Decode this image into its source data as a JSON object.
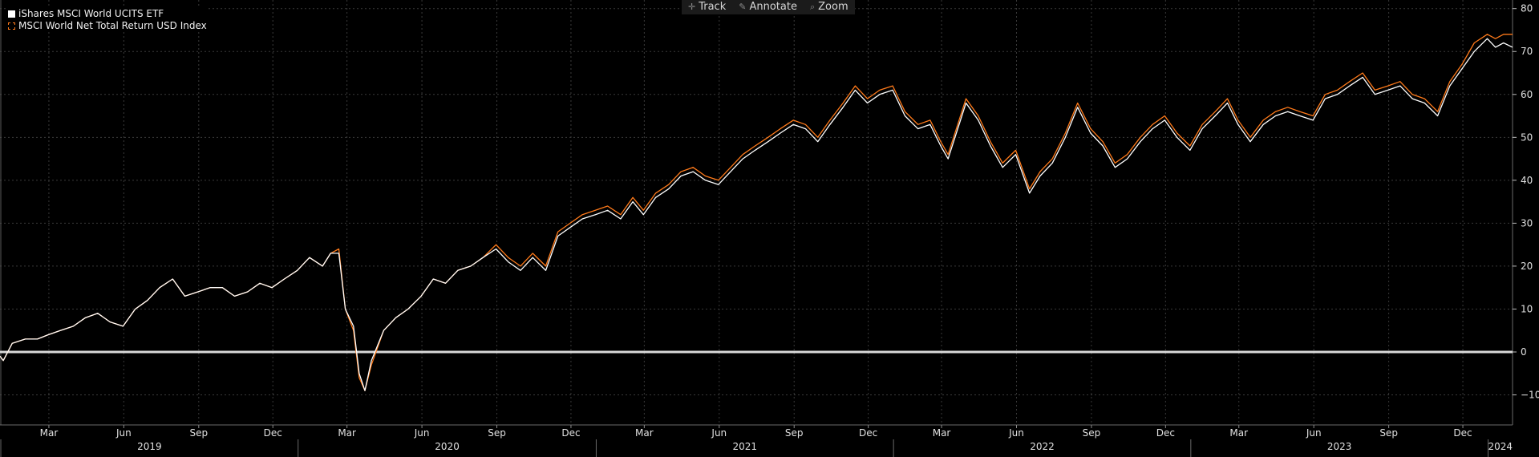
{
  "toolbar": {
    "track_label": "Track",
    "annotate_label": "Annotate",
    "zoom_label": "Zoom"
  },
  "legend": {
    "etf_label": "iShares MSCI World UCITS ETF",
    "index_label": "MSCI World Net Total Return USD Index"
  },
  "colors": {
    "background": "#000000",
    "etf_line": "#ffffff",
    "index_line": "#ff7a1a",
    "grid": "#3a3a3a",
    "zero_line": "#d9d9d9"
  },
  "chart_data": {
    "type": "line",
    "title": "",
    "xlabel": "",
    "ylabel": "",
    "x_range": [
      "2018-12-31",
      "2024-01-31"
    ],
    "ylim": [
      -17,
      82
    ],
    "yticks": [
      -10,
      0,
      10,
      20,
      30,
      40,
      50,
      60,
      70,
      80
    ],
    "grid": true,
    "legend_position": "top-left",
    "month_ticks": [
      {
        "date": "2019-03-01",
        "label": "Mar"
      },
      {
        "date": "2019-06-01",
        "label": "Jun"
      },
      {
        "date": "2019-09-01",
        "label": "Sep"
      },
      {
        "date": "2019-12-01",
        "label": "Dec"
      },
      {
        "date": "2020-03-01",
        "label": "Mar"
      },
      {
        "date": "2020-06-01",
        "label": "Jun"
      },
      {
        "date": "2020-09-01",
        "label": "Sep"
      },
      {
        "date": "2020-12-01",
        "label": "Dec"
      },
      {
        "date": "2021-03-01",
        "label": "Mar"
      },
      {
        "date": "2021-06-01",
        "label": "Jun"
      },
      {
        "date": "2021-09-01",
        "label": "Sep"
      },
      {
        "date": "2021-12-01",
        "label": "Dec"
      },
      {
        "date": "2022-03-01",
        "label": "Mar"
      },
      {
        "date": "2022-06-01",
        "label": "Jun"
      },
      {
        "date": "2022-09-01",
        "label": "Sep"
      },
      {
        "date": "2022-12-01",
        "label": "Dec"
      },
      {
        "date": "2023-03-01",
        "label": "Mar"
      },
      {
        "date": "2023-06-01",
        "label": "Jun"
      },
      {
        "date": "2023-09-01",
        "label": "Sep"
      },
      {
        "date": "2023-12-01",
        "label": "Dec"
      }
    ],
    "year_ticks": [
      {
        "year": "2019",
        "start": "2019-01-01",
        "end": "2020-01-01"
      },
      {
        "year": "2020",
        "start": "2020-01-01",
        "end": "2021-01-01"
      },
      {
        "year": "2021",
        "start": "2021-01-01",
        "end": "2022-01-01"
      },
      {
        "year": "2022",
        "start": "2022-01-01",
        "end": "2023-01-01"
      },
      {
        "year": "2023",
        "start": "2023-01-01",
        "end": "2024-01-01"
      },
      {
        "year": "2024",
        "start": "2024-01-01",
        "end": "2024-01-31"
      }
    ],
    "series": [
      {
        "name": "iShares MSCI World UCITS ETF",
        "color": "#ffffff",
        "points": [
          [
            "2018-12-31",
            -1
          ],
          [
            "2019-01-04",
            -2
          ],
          [
            "2019-01-15",
            2
          ],
          [
            "2019-01-31",
            3
          ],
          [
            "2019-02-15",
            3
          ],
          [
            "2019-02-28",
            4
          ],
          [
            "2019-03-15",
            5
          ],
          [
            "2019-03-31",
            6
          ],
          [
            "2019-04-15",
            8
          ],
          [
            "2019-04-30",
            9
          ],
          [
            "2019-05-15",
            7
          ],
          [
            "2019-05-31",
            6
          ],
          [
            "2019-06-15",
            10
          ],
          [
            "2019-06-30",
            12
          ],
          [
            "2019-07-15",
            15
          ],
          [
            "2019-07-31",
            17
          ],
          [
            "2019-08-15",
            13
          ],
          [
            "2019-08-31",
            14
          ],
          [
            "2019-09-15",
            15
          ],
          [
            "2019-09-30",
            15
          ],
          [
            "2019-10-15",
            13
          ],
          [
            "2019-10-31",
            14
          ],
          [
            "2019-11-15",
            16
          ],
          [
            "2019-11-30",
            15
          ],
          [
            "2019-12-15",
            17
          ],
          [
            "2019-12-31",
            19
          ],
          [
            "2020-01-15",
            22
          ],
          [
            "2020-01-31",
            20
          ],
          [
            "2020-02-10",
            23
          ],
          [
            "2020-02-20",
            23
          ],
          [
            "2020-02-28",
            10
          ],
          [
            "2020-03-09",
            6
          ],
          [
            "2020-03-16",
            -5
          ],
          [
            "2020-03-23",
            -9
          ],
          [
            "2020-03-31",
            -2
          ],
          [
            "2020-04-15",
            5
          ],
          [
            "2020-04-30",
            8
          ],
          [
            "2020-05-15",
            10
          ],
          [
            "2020-05-31",
            13
          ],
          [
            "2020-06-15",
            17
          ],
          [
            "2020-06-30",
            16
          ],
          [
            "2020-07-15",
            19
          ],
          [
            "2020-07-31",
            20
          ],
          [
            "2020-08-15",
            22
          ],
          [
            "2020-08-31",
            24
          ],
          [
            "2020-09-15",
            21
          ],
          [
            "2020-09-30",
            19
          ],
          [
            "2020-10-15",
            22
          ],
          [
            "2020-10-31",
            19
          ],
          [
            "2020-11-15",
            27
          ],
          [
            "2020-11-30",
            29
          ],
          [
            "2020-12-15",
            31
          ],
          [
            "2020-12-31",
            32
          ],
          [
            "2021-01-15",
            33
          ],
          [
            "2021-01-31",
            31
          ],
          [
            "2021-02-15",
            35
          ],
          [
            "2021-02-28",
            32
          ],
          [
            "2021-03-15",
            36
          ],
          [
            "2021-03-31",
            38
          ],
          [
            "2021-04-15",
            41
          ],
          [
            "2021-04-30",
            42
          ],
          [
            "2021-05-15",
            40
          ],
          [
            "2021-05-31",
            39
          ],
          [
            "2021-06-15",
            42
          ],
          [
            "2021-06-30",
            45
          ],
          [
            "2021-07-15",
            47
          ],
          [
            "2021-07-31",
            49
          ],
          [
            "2021-08-15",
            51
          ],
          [
            "2021-08-31",
            53
          ],
          [
            "2021-09-15",
            52
          ],
          [
            "2021-09-30",
            49
          ],
          [
            "2021-10-15",
            53
          ],
          [
            "2021-10-31",
            57
          ],
          [
            "2021-11-15",
            61
          ],
          [
            "2021-11-30",
            58
          ],
          [
            "2021-12-15",
            60
          ],
          [
            "2021-12-31",
            61
          ],
          [
            "2022-01-15",
            55
          ],
          [
            "2022-01-31",
            52
          ],
          [
            "2022-02-15",
            53
          ],
          [
            "2022-02-28",
            48
          ],
          [
            "2022-03-09",
            45
          ],
          [
            "2022-03-31",
            58
          ],
          [
            "2022-04-15",
            54
          ],
          [
            "2022-04-30",
            48
          ],
          [
            "2022-05-15",
            43
          ],
          [
            "2022-05-31",
            46
          ],
          [
            "2022-06-17",
            37
          ],
          [
            "2022-06-30",
            41
          ],
          [
            "2022-07-15",
            44
          ],
          [
            "2022-07-31",
            50
          ],
          [
            "2022-08-15",
            57
          ],
          [
            "2022-08-31",
            51
          ],
          [
            "2022-09-15",
            48
          ],
          [
            "2022-09-30",
            43
          ],
          [
            "2022-10-15",
            45
          ],
          [
            "2022-10-31",
            49
          ],
          [
            "2022-11-15",
            52
          ],
          [
            "2022-11-30",
            54
          ],
          [
            "2022-12-15",
            50
          ],
          [
            "2022-12-31",
            47
          ],
          [
            "2023-01-15",
            52
          ],
          [
            "2023-01-31",
            55
          ],
          [
            "2023-02-15",
            58
          ],
          [
            "2023-02-28",
            53
          ],
          [
            "2023-03-15",
            49
          ],
          [
            "2023-03-31",
            53
          ],
          [
            "2023-04-15",
            55
          ],
          [
            "2023-04-30",
            56
          ],
          [
            "2023-05-15",
            55
          ],
          [
            "2023-05-31",
            54
          ],
          [
            "2023-06-15",
            59
          ],
          [
            "2023-06-30",
            60
          ],
          [
            "2023-07-15",
            62
          ],
          [
            "2023-07-31",
            64
          ],
          [
            "2023-08-15",
            60
          ],
          [
            "2023-08-31",
            61
          ],
          [
            "2023-09-15",
            62
          ],
          [
            "2023-09-30",
            59
          ],
          [
            "2023-10-15",
            58
          ],
          [
            "2023-10-31",
            55
          ],
          [
            "2023-11-15",
            62
          ],
          [
            "2023-11-30",
            66
          ],
          [
            "2023-12-15",
            70
          ],
          [
            "2023-12-31",
            73
          ],
          [
            "2024-01-10",
            71
          ],
          [
            "2024-01-20",
            72
          ],
          [
            "2024-01-31",
            71
          ]
        ]
      },
      {
        "name": "MSCI World Net Total Return USD Index",
        "color": "#ff7a1a",
        "points": [
          [
            "2018-12-31",
            -1
          ],
          [
            "2019-01-04",
            -2
          ],
          [
            "2019-01-15",
            2
          ],
          [
            "2019-01-31",
            3
          ],
          [
            "2019-02-15",
            3
          ],
          [
            "2019-02-28",
            4
          ],
          [
            "2019-03-15",
            5
          ],
          [
            "2019-03-31",
            6
          ],
          [
            "2019-04-15",
            8
          ],
          [
            "2019-04-30",
            9
          ],
          [
            "2019-05-15",
            7
          ],
          [
            "2019-05-31",
            6
          ],
          [
            "2019-06-15",
            10
          ],
          [
            "2019-06-30",
            12
          ],
          [
            "2019-07-15",
            15
          ],
          [
            "2019-07-31",
            17
          ],
          [
            "2019-08-15",
            13
          ],
          [
            "2019-08-31",
            14
          ],
          [
            "2019-09-15",
            15
          ],
          [
            "2019-09-30",
            15
          ],
          [
            "2019-10-15",
            13
          ],
          [
            "2019-10-31",
            14
          ],
          [
            "2019-11-15",
            16
          ],
          [
            "2019-11-30",
            15
          ],
          [
            "2019-12-15",
            17
          ],
          [
            "2019-12-31",
            19
          ],
          [
            "2020-01-15",
            22
          ],
          [
            "2020-01-31",
            20
          ],
          [
            "2020-02-10",
            23
          ],
          [
            "2020-02-20",
            24
          ],
          [
            "2020-02-28",
            10
          ],
          [
            "2020-03-09",
            5
          ],
          [
            "2020-03-16",
            -6
          ],
          [
            "2020-03-23",
            -9
          ],
          [
            "2020-03-31",
            -3
          ],
          [
            "2020-04-15",
            5
          ],
          [
            "2020-04-30",
            8
          ],
          [
            "2020-05-15",
            10
          ],
          [
            "2020-05-31",
            13
          ],
          [
            "2020-06-15",
            17
          ],
          [
            "2020-06-30",
            16
          ],
          [
            "2020-07-15",
            19
          ],
          [
            "2020-07-31",
            20
          ],
          [
            "2020-08-15",
            22
          ],
          [
            "2020-08-31",
            25
          ],
          [
            "2020-09-15",
            22
          ],
          [
            "2020-09-30",
            20
          ],
          [
            "2020-10-15",
            23
          ],
          [
            "2020-10-31",
            20
          ],
          [
            "2020-11-15",
            28
          ],
          [
            "2020-11-30",
            30
          ],
          [
            "2020-12-15",
            32
          ],
          [
            "2020-12-31",
            33
          ],
          [
            "2021-01-15",
            34
          ],
          [
            "2021-01-31",
            32
          ],
          [
            "2021-02-15",
            36
          ],
          [
            "2021-02-28",
            33
          ],
          [
            "2021-03-15",
            37
          ],
          [
            "2021-03-31",
            39
          ],
          [
            "2021-04-15",
            42
          ],
          [
            "2021-04-30",
            43
          ],
          [
            "2021-05-15",
            41
          ],
          [
            "2021-05-31",
            40
          ],
          [
            "2021-06-15",
            43
          ],
          [
            "2021-06-30",
            46
          ],
          [
            "2021-07-15",
            48
          ],
          [
            "2021-07-31",
            50
          ],
          [
            "2021-08-15",
            52
          ],
          [
            "2021-08-31",
            54
          ],
          [
            "2021-09-15",
            53
          ],
          [
            "2021-09-30",
            50
          ],
          [
            "2021-10-15",
            54
          ],
          [
            "2021-10-31",
            58
          ],
          [
            "2021-11-15",
            62
          ],
          [
            "2021-11-30",
            59
          ],
          [
            "2021-12-15",
            61
          ],
          [
            "2021-12-31",
            62
          ],
          [
            "2022-01-15",
            56
          ],
          [
            "2022-01-31",
            53
          ],
          [
            "2022-02-15",
            54
          ],
          [
            "2022-02-28",
            49
          ],
          [
            "2022-03-09",
            46
          ],
          [
            "2022-03-31",
            59
          ],
          [
            "2022-04-15",
            55
          ],
          [
            "2022-04-30",
            49
          ],
          [
            "2022-05-15",
            44
          ],
          [
            "2022-05-31",
            47
          ],
          [
            "2022-06-17",
            38
          ],
          [
            "2022-06-30",
            42
          ],
          [
            "2022-07-15",
            45
          ],
          [
            "2022-07-31",
            51
          ],
          [
            "2022-08-15",
            58
          ],
          [
            "2022-08-31",
            52
          ],
          [
            "2022-09-15",
            49
          ],
          [
            "2022-09-30",
            44
          ],
          [
            "2022-10-15",
            46
          ],
          [
            "2022-10-31",
            50
          ],
          [
            "2022-11-15",
            53
          ],
          [
            "2022-11-30",
            55
          ],
          [
            "2022-12-15",
            51
          ],
          [
            "2022-12-31",
            48
          ],
          [
            "2023-01-15",
            53
          ],
          [
            "2023-01-31",
            56
          ],
          [
            "2023-02-15",
            59
          ],
          [
            "2023-02-28",
            54
          ],
          [
            "2023-03-15",
            50
          ],
          [
            "2023-03-31",
            54
          ],
          [
            "2023-04-15",
            56
          ],
          [
            "2023-04-30",
            57
          ],
          [
            "2023-05-15",
            56
          ],
          [
            "2023-05-31",
            55
          ],
          [
            "2023-06-15",
            60
          ],
          [
            "2023-06-30",
            61
          ],
          [
            "2023-07-15",
            63
          ],
          [
            "2023-07-31",
            65
          ],
          [
            "2023-08-15",
            61
          ],
          [
            "2023-08-31",
            62
          ],
          [
            "2023-09-15",
            63
          ],
          [
            "2023-09-30",
            60
          ],
          [
            "2023-10-15",
            59
          ],
          [
            "2023-10-31",
            56
          ],
          [
            "2023-11-15",
            63
          ],
          [
            "2023-11-30",
            67
          ],
          [
            "2023-12-15",
            72
          ],
          [
            "2023-12-31",
            74
          ],
          [
            "2024-01-10",
            73
          ],
          [
            "2024-01-20",
            74
          ],
          [
            "2024-01-31",
            74
          ]
        ]
      }
    ]
  }
}
